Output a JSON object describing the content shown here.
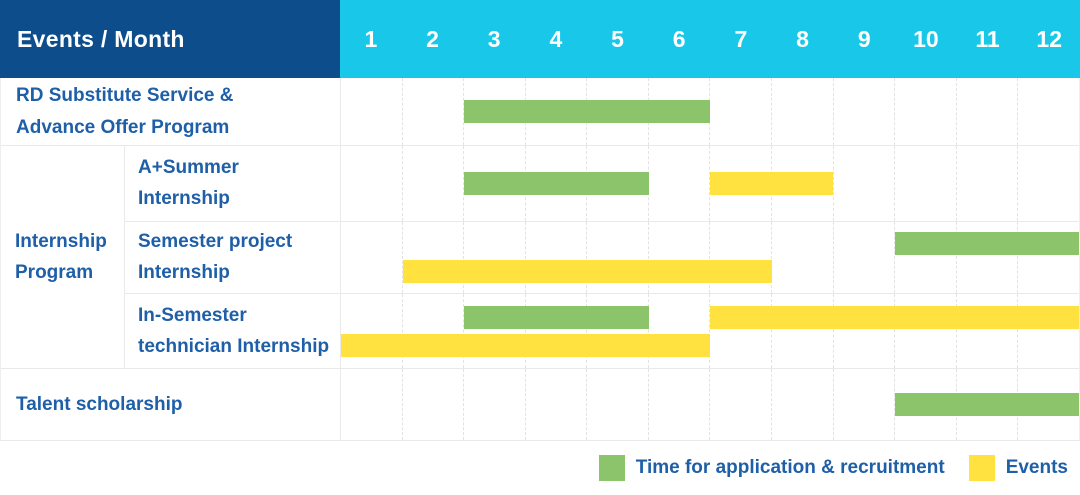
{
  "header": {
    "row_label": "Events / Month"
  },
  "colors": {
    "navy": "#0d4d8c",
    "cyan": "#19c8e8",
    "green": "#8bc46b",
    "yellow": "#ffe23f",
    "label_text": "#1e5fa8",
    "grid_line": "#e9e9e9"
  },
  "chart_data": {
    "type": "bar",
    "variant": "gantt",
    "x_categories": [
      "1",
      "2",
      "3",
      "4",
      "5",
      "6",
      "7",
      "8",
      "9",
      "10",
      "11",
      "12"
    ],
    "x_axis_unit": "month",
    "x_range": [
      1,
      12
    ],
    "group_label": "Internship\nProgram",
    "rows": [
      {
        "label": "RD Substitute Service &\nAdvance Offer Program",
        "group": null,
        "lanes": [
          [
            {
              "color": "green",
              "start": 3,
              "end": 6
            }
          ]
        ]
      },
      {
        "label": "A+Summer\nInternship",
        "group": "Internship Program",
        "lanes": [
          [
            {
              "color": "green",
              "start": 3,
              "end": 5
            },
            {
              "color": "yellow",
              "start": 7,
              "end": 8
            }
          ]
        ]
      },
      {
        "label": "Semester project\nInternship",
        "group": "Internship Program",
        "lanes": [
          [
            {
              "color": "green",
              "start": 10,
              "end": 12
            }
          ],
          [
            {
              "color": "yellow",
              "start": 2,
              "end": 7
            }
          ]
        ]
      },
      {
        "label": "In-Semester\ntechnician Internship",
        "group": "Internship Program",
        "lanes": [
          [
            {
              "color": "green",
              "start": 3,
              "end": 5
            },
            {
              "color": "yellow",
              "start": 7,
              "end": 12
            }
          ],
          [
            {
              "color": "yellow",
              "start": 1,
              "end": 6
            }
          ]
        ]
      },
      {
        "label": "Talent scholarship",
        "group": null,
        "lanes": [
          [
            {
              "color": "green",
              "start": 10,
              "end": 12
            }
          ]
        ]
      }
    ],
    "legend": [
      {
        "color": "green",
        "label": "Time for application & recruitment"
      },
      {
        "color": "yellow",
        "label": "Events"
      }
    ],
    "legend_position": "bottom-right",
    "grid": "dashed-vertical-month-lines"
  }
}
